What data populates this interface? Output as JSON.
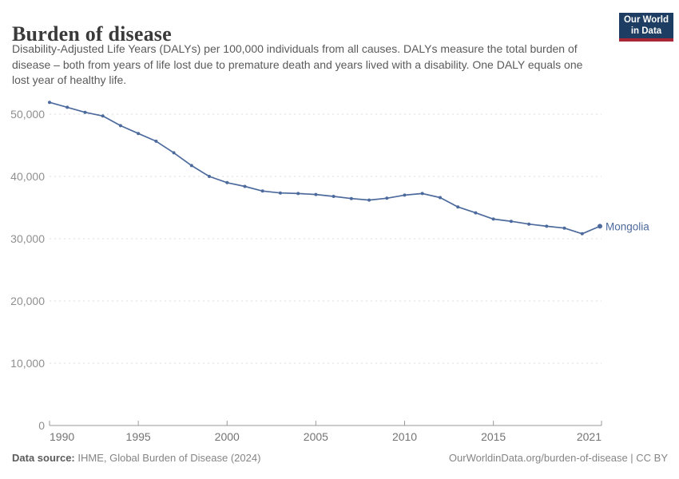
{
  "header": {
    "title": "Burden of disease",
    "subtitle": "Disability-Adjusted Life Years (DALYs) per 100,000 individuals from all causes. DALYs measure the total burden of disease – both from years of life lost due to premature death and years lived with a disability. One DALY equals one lost year of healthy life.",
    "logo": {
      "line1": "Our World",
      "line2": "in Data"
    }
  },
  "chart_data": {
    "type": "line",
    "title": "Burden of disease",
    "ylabel": "DALYs per 100,000 individuals",
    "xlabel": "",
    "grid": true,
    "legend_position": "end-of-line-label",
    "x": [
      1990,
      1991,
      1992,
      1993,
      1994,
      1995,
      1996,
      1997,
      1998,
      1999,
      2000,
      2001,
      2002,
      2003,
      2004,
      2005,
      2006,
      2007,
      2008,
      2009,
      2010,
      2011,
      2012,
      2013,
      2014,
      2015,
      2016,
      2017,
      2018,
      2019,
      2020,
      2021
    ],
    "series": [
      {
        "name": "Mongolia",
        "color": "#4c6a9c",
        "values": [
          51900,
          51100,
          50300,
          49700,
          48150,
          46900,
          45650,
          43800,
          41750,
          40000,
          39000,
          38400,
          37650,
          37350,
          37250,
          37100,
          36800,
          36450,
          36200,
          36500,
          37000,
          37250,
          36600,
          35100,
          34150,
          33150,
          32800,
          32350,
          32000,
          31700,
          30800,
          32000
        ]
      }
    ],
    "ylim": [
      0,
      52500
    ],
    "yticks": [
      0,
      10000,
      20000,
      30000,
      40000,
      50000
    ],
    "xticks": [
      1990,
      1995,
      2000,
      2005,
      2010,
      2015,
      2021
    ]
  },
  "footer": {
    "source_label": "Data source:",
    "source_text": " IHME, Global Burden of Disease (2024)",
    "link_text": "OurWorldinData.org/burden-of-disease | CC BY"
  },
  "colors": {
    "line": "#4c6a9c",
    "grid": "#dddddd",
    "axis": "#9a9a9a",
    "ytick_label": "#8f8f8f",
    "xtick_label": "#737373",
    "title": "#3a3a3a",
    "subtitle": "#5a5a5a",
    "footer": "#858585",
    "logo_bg": "#1d3d63",
    "logo_stripe": "#a82633"
  }
}
